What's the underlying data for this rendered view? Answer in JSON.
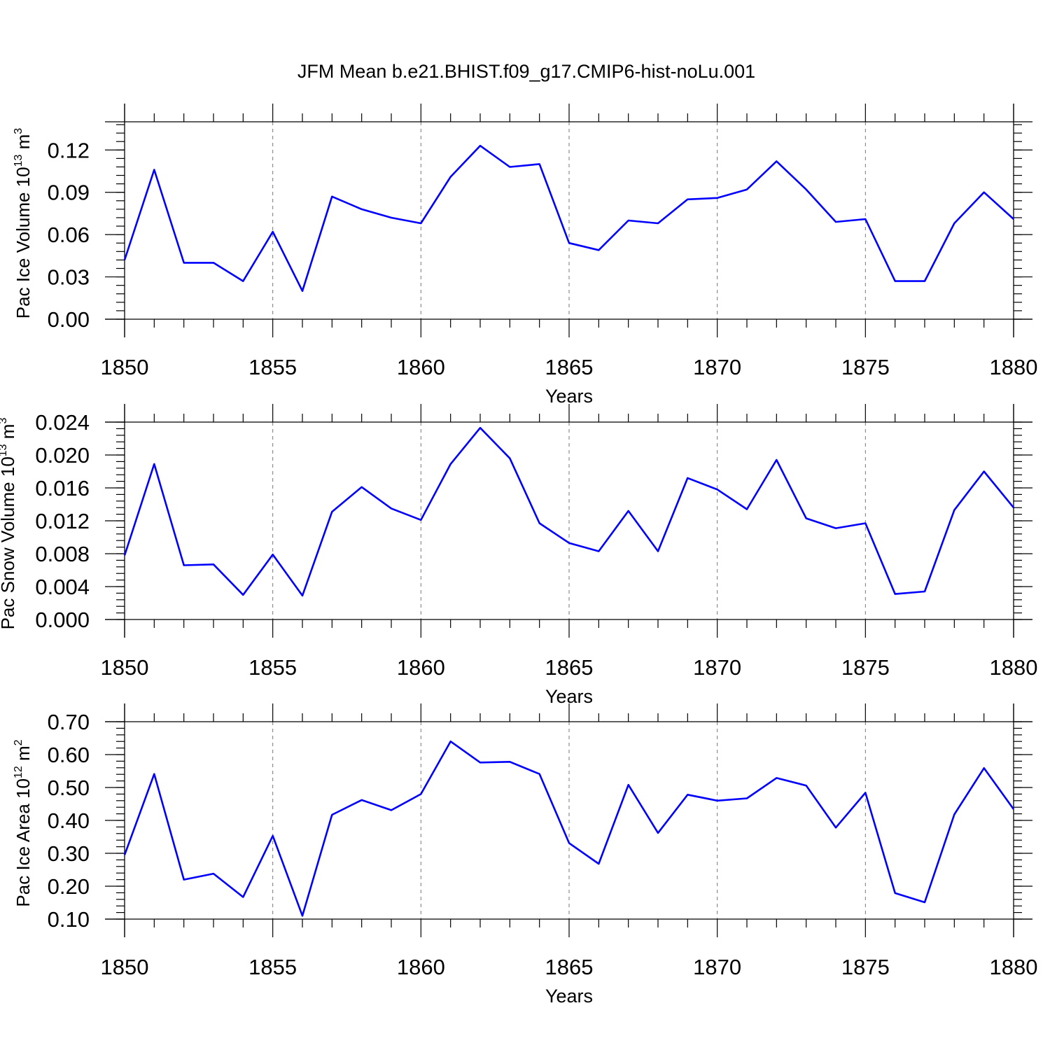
{
  "title": "JFM Mean b.e21.BHIST.f09_g17.CMIP6-hist-noLu.001",
  "colors": {
    "series": "#0000ff",
    "grid": "#777777",
    "axis": "#000000"
  },
  "chart_data": [
    {
      "type": "line",
      "xlabel": "Years",
      "ylabel_prefix": "Pac Ice Volume 10",
      "ylabel_exp": "13",
      "ylabel_unit": " m",
      "ylabel_unit_exp": "3",
      "xlim": [
        1850,
        1880
      ],
      "ylim": [
        0.0,
        0.14
      ],
      "yticks": [
        "0.00",
        "0.03",
        "0.06",
        "0.09",
        "0.12"
      ],
      "xticks": [
        "1850",
        "1855",
        "1860",
        "1865",
        "1870",
        "1875",
        "1880"
      ],
      "x": [
        1850,
        1851,
        1852,
        1853,
        1854,
        1855,
        1856,
        1857,
        1858,
        1859,
        1860,
        1861,
        1862,
        1863,
        1864,
        1865,
        1866,
        1867,
        1868,
        1869,
        1870,
        1871,
        1872,
        1873,
        1874,
        1875,
        1876,
        1877,
        1878,
        1879,
        1880
      ],
      "values": [
        0.042,
        0.106,
        0.04,
        0.04,
        0.027,
        0.062,
        0.02,
        0.087,
        0.078,
        0.072,
        0.068,
        0.101,
        0.123,
        0.108,
        0.11,
        0.054,
        0.049,
        0.07,
        0.068,
        0.085,
        0.086,
        0.092,
        0.112,
        0.092,
        0.069,
        0.071,
        0.027,
        0.027,
        0.068,
        0.09,
        0.071
      ],
      "grid": "vertical-dashed"
    },
    {
      "type": "line",
      "xlabel": "Years",
      "ylabel_prefix": "Pac Snow Volume 10",
      "ylabel_exp": "13",
      "ylabel_unit": " m",
      "ylabel_unit_exp": "3",
      "xlim": [
        1850,
        1880
      ],
      "ylim": [
        0.0,
        0.024
      ],
      "yticks": [
        "0.000",
        "0.004",
        "0.008",
        "0.012",
        "0.016",
        "0.020",
        "0.024"
      ],
      "xticks": [
        "1850",
        "1855",
        "1860",
        "1865",
        "1870",
        "1875",
        "1880"
      ],
      "x": [
        1850,
        1851,
        1852,
        1853,
        1854,
        1855,
        1856,
        1857,
        1858,
        1859,
        1860,
        1861,
        1862,
        1863,
        1864,
        1865,
        1866,
        1867,
        1868,
        1869,
        1870,
        1871,
        1872,
        1873,
        1874,
        1875,
        1876,
        1877,
        1878,
        1879,
        1880
      ],
      "values": [
        0.0078,
        0.0189,
        0.0066,
        0.0067,
        0.003,
        0.0079,
        0.0029,
        0.0131,
        0.0161,
        0.0135,
        0.0121,
        0.0189,
        0.0233,
        0.0196,
        0.0117,
        0.0093,
        0.0083,
        0.0132,
        0.0083,
        0.0172,
        0.0158,
        0.0134,
        0.0194,
        0.0123,
        0.0111,
        0.0117,
        0.0031,
        0.0034,
        0.0133,
        0.018,
        0.0136
      ],
      "grid": "vertical-dashed"
    },
    {
      "type": "line",
      "xlabel": "Years",
      "ylabel_prefix": "Pac Ice Area 10",
      "ylabel_exp": "12",
      "ylabel_unit": " m",
      "ylabel_unit_exp": "2",
      "xlim": [
        1850,
        1880
      ],
      "ylim": [
        0.1,
        0.7
      ],
      "yticks": [
        "0.10",
        "0.20",
        "0.30",
        "0.40",
        "0.50",
        "0.60",
        "0.70"
      ],
      "xticks": [
        "1850",
        "1855",
        "1860",
        "1865",
        "1870",
        "1875",
        "1880"
      ],
      "x": [
        1850,
        1851,
        1852,
        1853,
        1854,
        1855,
        1856,
        1857,
        1858,
        1859,
        1860,
        1861,
        1862,
        1863,
        1864,
        1865,
        1866,
        1867,
        1868,
        1869,
        1870,
        1871,
        1872,
        1873,
        1874,
        1875,
        1876,
        1877,
        1878,
        1879,
        1880
      ],
      "values": [
        0.295,
        0.541,
        0.22,
        0.238,
        0.167,
        0.353,
        0.11,
        0.417,
        0.462,
        0.431,
        0.48,
        0.64,
        0.576,
        0.578,
        0.541,
        0.331,
        0.268,
        0.508,
        0.362,
        0.478,
        0.46,
        0.467,
        0.529,
        0.506,
        0.378,
        0.484,
        0.179,
        0.151,
        0.418,
        0.559,
        0.434
      ],
      "grid": "vertical-dashed"
    }
  ]
}
